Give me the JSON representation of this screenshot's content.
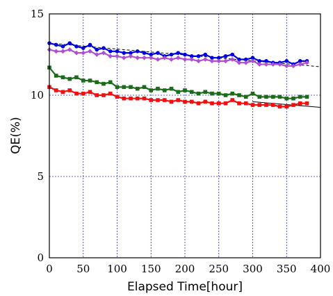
{
  "chart_data": {
    "type": "scatter",
    "title": "",
    "xlabel": "Elapsed Time[hour]",
    "ylabel": "QE(%)",
    "xlim": [
      0,
      400
    ],
    "ylim": [
      0,
      15
    ],
    "xticks": [
      "0",
      "50",
      "100",
      "150",
      "200",
      "250",
      "300",
      "350",
      "400"
    ],
    "yticks": [
      "0",
      "5",
      "10",
      "15"
    ],
    "grid": true,
    "legend": "none",
    "series": [
      {
        "color": "#0000e0",
        "marker": "circle",
        "x": [
          0,
          10,
          20,
          30,
          40,
          50,
          60,
          70,
          80,
          90,
          100,
          110,
          120,
          130,
          140,
          150,
          160,
          170,
          180,
          190,
          200,
          210,
          220,
          230,
          240,
          250,
          260,
          270,
          280,
          290,
          300,
          310,
          320,
          330,
          340,
          350,
          360,
          370,
          380
        ],
        "y": [
          13.2,
          13.1,
          13.0,
          13.2,
          13.0,
          12.9,
          13.1,
          12.8,
          12.9,
          12.7,
          12.7,
          12.6,
          12.6,
          12.7,
          12.6,
          12.5,
          12.6,
          12.4,
          12.5,
          12.6,
          12.5,
          12.4,
          12.4,
          12.5,
          12.3,
          12.3,
          12.4,
          12.5,
          12.2,
          12.2,
          12.3,
          12.1,
          12.1,
          12.0,
          12.0,
          12.1,
          11.9,
          12.1,
          12.1
        ]
      },
      {
        "color": "#b050d0",
        "marker": "diamond",
        "x": [
          0,
          10,
          20,
          30,
          40,
          50,
          60,
          70,
          80,
          90,
          100,
          110,
          120,
          130,
          140,
          150,
          160,
          170,
          180,
          190,
          200,
          210,
          220,
          230,
          240,
          250,
          260,
          270,
          280,
          290,
          300,
          310,
          320,
          330,
          340,
          350,
          360,
          370,
          380
        ],
        "y": [
          12.8,
          12.7,
          12.7,
          12.8,
          12.6,
          12.6,
          12.7,
          12.5,
          12.6,
          12.4,
          12.4,
          12.3,
          12.4,
          12.3,
          12.3,
          12.3,
          12.2,
          12.3,
          12.2,
          12.3,
          12.2,
          12.2,
          12.1,
          12.2,
          12.1,
          12.1,
          12.1,
          12.2,
          12.0,
          12.0,
          12.1,
          11.9,
          11.9,
          11.9,
          11.9,
          11.8,
          11.8,
          11.9,
          12.0
        ]
      },
      {
        "color": "#1a6b1a",
        "marker": "square",
        "x": [
          0,
          10,
          20,
          30,
          40,
          50,
          60,
          70,
          80,
          90,
          100,
          110,
          120,
          130,
          140,
          150,
          160,
          170,
          180,
          190,
          200,
          210,
          220,
          230,
          240,
          250,
          260,
          270,
          280,
          290,
          300,
          310,
          320,
          330,
          340,
          350,
          360,
          370,
          380
        ],
        "y": [
          11.7,
          11.2,
          11.1,
          11.0,
          11.1,
          10.9,
          10.9,
          10.8,
          10.7,
          10.8,
          10.5,
          10.5,
          10.5,
          10.4,
          10.5,
          10.3,
          10.4,
          10.3,
          10.4,
          10.2,
          10.3,
          10.2,
          10.1,
          10.2,
          10.1,
          10.1,
          10.0,
          10.1,
          10.0,
          9.9,
          10.1,
          9.9,
          9.9,
          9.9,
          9.9,
          9.8,
          9.8,
          9.9,
          9.9
        ]
      },
      {
        "color": "#f01010",
        "marker": "square",
        "x": [
          0,
          10,
          20,
          30,
          40,
          50,
          60,
          70,
          80,
          90,
          100,
          110,
          120,
          130,
          140,
          150,
          160,
          170,
          180,
          190,
          200,
          210,
          220,
          230,
          240,
          250,
          260,
          270,
          280,
          290,
          300,
          310,
          320,
          330,
          340,
          350,
          360,
          370,
          380
        ],
        "y": [
          10.5,
          10.3,
          10.2,
          10.3,
          10.1,
          10.1,
          10.2,
          10.0,
          10.0,
          10.1,
          9.9,
          9.8,
          9.8,
          9.8,
          9.8,
          9.7,
          9.7,
          9.7,
          9.6,
          9.7,
          9.6,
          9.6,
          9.5,
          9.6,
          9.5,
          9.5,
          9.5,
          9.7,
          9.5,
          9.5,
          9.4,
          9.4,
          9.4,
          9.4,
          9.3,
          9.3,
          9.4,
          9.5,
          9.5
        ]
      }
    ],
    "fit_lines": [
      {
        "color": "#000000",
        "style": "dashed",
        "x": [
          0,
          400
        ],
        "y": [
          13.2,
          11.75
        ]
      },
      {
        "color": "#000000",
        "style": "solid",
        "x": [
          300,
          400
        ],
        "y": [
          9.6,
          9.25
        ]
      }
    ]
  }
}
